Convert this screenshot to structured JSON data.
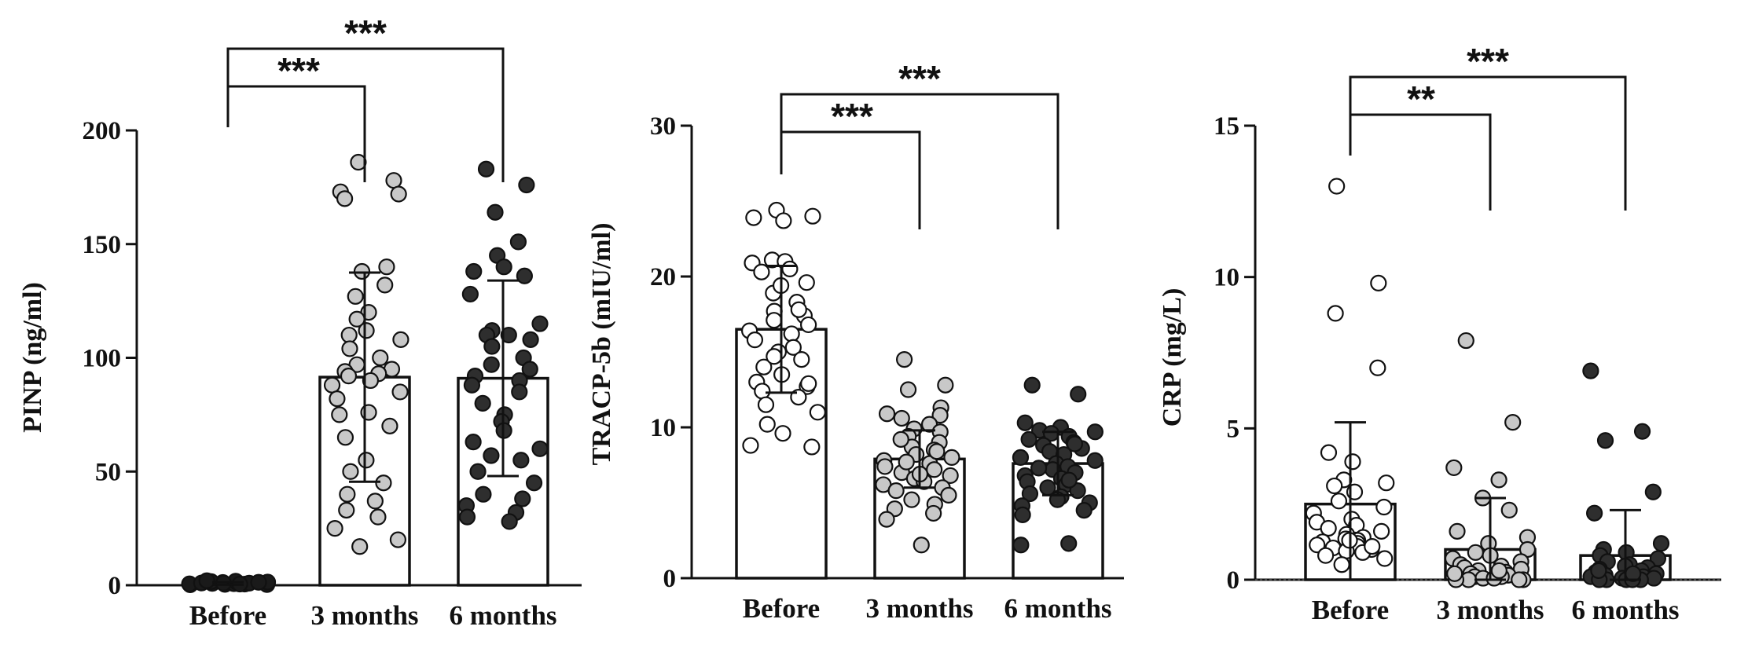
{
  "chart_data": [
    {
      "type": "bar",
      "ylabel": "PINP (ng/ml)",
      "ylim": [
        0,
        200
      ],
      "yticks": [
        "0",
        "50",
        "100",
        "150",
        "200"
      ],
      "categories": [
        "Before",
        "3 months",
        "6 months"
      ],
      "means": [
        0.8,
        91.5,
        91
      ],
      "sd": [
        0.6,
        46,
        43
      ],
      "point_colors": [
        "#1a1a1a",
        "#c8c8c8",
        "#2e2e2e"
      ],
      "points": [
        [
          0.2,
          0.3,
          0.4,
          0.5,
          0.6,
          0.7,
          0.8,
          0.9,
          1.0,
          1.1,
          1.2,
          1.4,
          1.6,
          1.8,
          2.0,
          0.5,
          0.9,
          1.3
        ],
        [
          186,
          178,
          173,
          172,
          170,
          140,
          138,
          132,
          127,
          120,
          117,
          112,
          110,
          108,
          104,
          100,
          97,
          95,
          94,
          93,
          92,
          90,
          88,
          85,
          82,
          76,
          75,
          70,
          65,
          55,
          50,
          45,
          40,
          37,
          33,
          30,
          25,
          20,
          17
        ],
        [
          183,
          176,
          164,
          151,
          145,
          140,
          138,
          136,
          128,
          115,
          112,
          110,
          110,
          108,
          105,
          100,
          97,
          95,
          92,
          90,
          88,
          85,
          80,
          75,
          72,
          68,
          63,
          60,
          57,
          55,
          50,
          45,
          40,
          38,
          35,
          32,
          30,
          28
        ]
      ],
      "significance": [
        {
          "from": 0,
          "to": 1,
          "label": "***"
        },
        {
          "from": 0,
          "to": 2,
          "label": "***"
        }
      ]
    },
    {
      "type": "bar",
      "ylabel": "TRACP-5b (mIU/ml)",
      "ylim": [
        0,
        30
      ],
      "yticks": [
        "0",
        "10",
        "20",
        "30"
      ],
      "categories": [
        "Before",
        "3 months",
        "6 months"
      ],
      "means": [
        16.5,
        7.9,
        7.6
      ],
      "sd": [
        4.2,
        1.9,
        2.1
      ],
      "point_colors": [
        "#ffffff",
        "#c8c8c8",
        "#2e2e2e"
      ],
      "points": [
        [
          24.4,
          24.0,
          23.9,
          23.7,
          21.1,
          21.0,
          20.9,
          20.5,
          20.3,
          19.6,
          18.9,
          18.3,
          17.7,
          17.4,
          17.1,
          16.8,
          16.4,
          16.2,
          15.8,
          15.3,
          15.0,
          14.5,
          14.0,
          13.5,
          13.0,
          12.7,
          12.4,
          12.0,
          11.5,
          11.0,
          10.2,
          9.6,
          8.8,
          8.7,
          19.4,
          17.8,
          14.7,
          12.9
        ],
        [
          14.5,
          12.8,
          12.5,
          11.3,
          10.9,
          10.8,
          10.6,
          10.2,
          9.9,
          9.7,
          9.4,
          9.0,
          8.7,
          8.5,
          8.2,
          8.0,
          7.8,
          7.6,
          7.4,
          7.2,
          7.0,
          6.8,
          6.6,
          6.4,
          6.2,
          6.0,
          5.8,
          5.5,
          5.2,
          4.9,
          4.6,
          4.3,
          3.9,
          2.2,
          9.2,
          8.4,
          7.7,
          6.9
        ],
        [
          12.8,
          12.2,
          10.3,
          10.0,
          9.8,
          9.7,
          9.6,
          9.4,
          9.2,
          9.0,
          8.8,
          8.6,
          8.4,
          8.2,
          8.0,
          7.8,
          7.6,
          7.4,
          7.2,
          7.0,
          6.8,
          6.6,
          6.4,
          6.2,
          6.0,
          5.8,
          5.6,
          5.4,
          5.2,
          5.0,
          4.8,
          4.5,
          4.2,
          2.3,
          2.2,
          8.9,
          7.3,
          6.5
        ]
      ],
      "significance": [
        {
          "from": 0,
          "to": 1,
          "label": "***"
        },
        {
          "from": 0,
          "to": 2,
          "label": "***"
        }
      ]
    },
    {
      "type": "bar",
      "ylabel": "CRP (mg/L)",
      "ylim": [
        0,
        15
      ],
      "yticks": [
        "0",
        "5",
        "10",
        "15"
      ],
      "categories": [
        "Before",
        "3 months",
        "6 months"
      ],
      "means": [
        2.5,
        1.0,
        0.8
      ],
      "sd": [
        2.7,
        1.7,
        1.5
      ],
      "point_colors": [
        "#ffffff",
        "#c8c8c8",
        "#2e2e2e"
      ],
      "points": [
        [
          13.0,
          9.8,
          8.8,
          7.0,
          4.2,
          3.9,
          3.3,
          3.2,
          3.1,
          2.9,
          2.6,
          2.4,
          2.2,
          2.0,
          1.9,
          1.8,
          1.7,
          1.6,
          1.5,
          1.4,
          1.35,
          1.3,
          1.25,
          1.2,
          1.15,
          1.1,
          1.05,
          1.0,
          0.95,
          0.9,
          0.8,
          0.7,
          0.5,
          1.1,
          1.3
        ],
        [
          7.9,
          5.2,
          3.7,
          3.3,
          2.7,
          2.3,
          1.6,
          1.4,
          1.2,
          1.0,
          0.9,
          0.8,
          0.7,
          0.6,
          0.5,
          0.45,
          0.4,
          0.35,
          0.3,
          0.25,
          0.2,
          0.15,
          0.1,
          0.1,
          0.05,
          0.05,
          0.0,
          0.0,
          0.0,
          0.0,
          0.2,
          0.3
        ],
        [
          6.9,
          4.9,
          4.6,
          2.9,
          2.2,
          1.2,
          1.0,
          0.9,
          0.8,
          0.7,
          0.6,
          0.5,
          0.45,
          0.4,
          0.35,
          0.3,
          0.25,
          0.2,
          0.15,
          0.1,
          0.1,
          0.05,
          0.05,
          0.0,
          0.0,
          0.0,
          0.0,
          0.0,
          0.3,
          0.2
        ]
      ],
      "significance": [
        {
          "from": 0,
          "to": 1,
          "label": "**"
        },
        {
          "from": 0,
          "to": 2,
          "label": "***"
        }
      ]
    }
  ]
}
